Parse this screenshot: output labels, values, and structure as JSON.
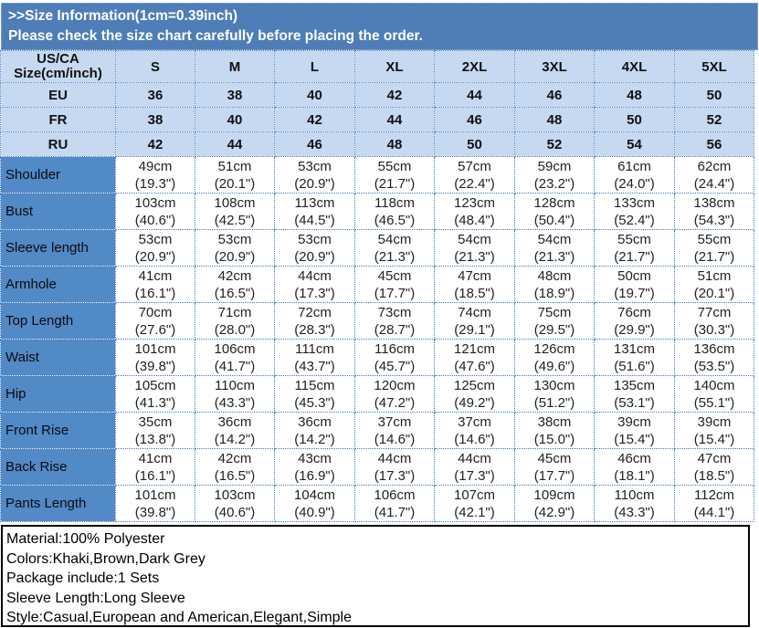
{
  "banner": {
    "title": ">>Size Information(1cm=0.39inch)",
    "subtitle": "Please check the size chart carefully before placing the order."
  },
  "colors": {
    "banner_bg": "#4e7db8",
    "header_bg": "#c6d9f1",
    "label_bg": "#5289c7",
    "dotted_border": "#3f78c0",
    "notes_border": "#000000"
  },
  "table": {
    "corner_header_line1": "US/CA",
    "corner_header_line2": "Size(cm/inch)",
    "size_headers": [
      "S",
      "M",
      "L",
      "XL",
      "2XL",
      "3XL",
      "4XL",
      "5XL"
    ],
    "region_rows": [
      {
        "label": "EU",
        "values": [
          "36",
          "38",
          "40",
          "42",
          "44",
          "46",
          "48",
          "50"
        ]
      },
      {
        "label": "FR",
        "values": [
          "38",
          "40",
          "42",
          "44",
          "46",
          "48",
          "50",
          "52"
        ]
      },
      {
        "label": "RU",
        "values": [
          "42",
          "44",
          "46",
          "48",
          "50",
          "52",
          "54",
          "56"
        ]
      }
    ],
    "measurement_rows": [
      {
        "label": "Shoulder",
        "cells": [
          {
            "cm": "49cm",
            "in": "(19.3\")"
          },
          {
            "cm": "51cm",
            "in": "(20.1\")"
          },
          {
            "cm": "53cm",
            "in": "(20.9\")"
          },
          {
            "cm": "55cm",
            "in": "(21.7\")"
          },
          {
            "cm": "57cm",
            "in": "(22.4\")"
          },
          {
            "cm": "59cm",
            "in": "(23.2\")"
          },
          {
            "cm": "61cm",
            "in": "(24.0\")"
          },
          {
            "cm": "62cm",
            "in": "(24.4\")"
          }
        ]
      },
      {
        "label": "Bust",
        "cells": [
          {
            "cm": "103cm",
            "in": "(40.6\")"
          },
          {
            "cm": "108cm",
            "in": "(42.5\")"
          },
          {
            "cm": "113cm",
            "in": "(44.5\")"
          },
          {
            "cm": "118cm",
            "in": "(46.5\")"
          },
          {
            "cm": "123cm",
            "in": "(48.4\")"
          },
          {
            "cm": "128cm",
            "in": "(50.4\")"
          },
          {
            "cm": "133cm",
            "in": "(52.4\")"
          },
          {
            "cm": "138cm",
            "in": "(54.3\")"
          }
        ]
      },
      {
        "label": "Sleeve length",
        "cells": [
          {
            "cm": "53cm",
            "in": "(20.9\")"
          },
          {
            "cm": "53cm",
            "in": "(20.9\")"
          },
          {
            "cm": "53cm",
            "in": "(20.9\")"
          },
          {
            "cm": "54cm",
            "in": "(21.3\")"
          },
          {
            "cm": "54cm",
            "in": "(21.3\")"
          },
          {
            "cm": "54cm",
            "in": "(21.3\")"
          },
          {
            "cm": "55cm",
            "in": "(21.7\")"
          },
          {
            "cm": "55cm",
            "in": "(21.7\")"
          }
        ]
      },
      {
        "label": "Armhole",
        "cells": [
          {
            "cm": "41cm",
            "in": "(16.1\")"
          },
          {
            "cm": "42cm",
            "in": "(16.5\")"
          },
          {
            "cm": "44cm",
            "in": "(17.3\")"
          },
          {
            "cm": "45cm",
            "in": "(17.7\")"
          },
          {
            "cm": "47cm",
            "in": "(18.5\")"
          },
          {
            "cm": "48cm",
            "in": "(18.9\")"
          },
          {
            "cm": "50cm",
            "in": "(19.7\")"
          },
          {
            "cm": "51cm",
            "in": "(20.1\")"
          }
        ]
      },
      {
        "label": "Top Length",
        "cells": [
          {
            "cm": "70cm",
            "in": "(27.6\")"
          },
          {
            "cm": "71cm",
            "in": "(28.0\")"
          },
          {
            "cm": "72cm",
            "in": "(28.3\")"
          },
          {
            "cm": "73cm",
            "in": "(28.7\")"
          },
          {
            "cm": "74cm",
            "in": "(29.1\")"
          },
          {
            "cm": "75cm",
            "in": "(29.5\")"
          },
          {
            "cm": "76cm",
            "in": "(29.9\")"
          },
          {
            "cm": "77cm",
            "in": "(30.3\")"
          }
        ]
      },
      {
        "label": "Waist",
        "cells": [
          {
            "cm": "101cm",
            "in": "(39.8\")"
          },
          {
            "cm": "106cm",
            "in": "(41.7\")"
          },
          {
            "cm": "111cm",
            "in": "(43.7\")"
          },
          {
            "cm": "116cm",
            "in": "(45.7\")"
          },
          {
            "cm": "121cm",
            "in": "(47.6\")"
          },
          {
            "cm": "126cm",
            "in": "(49.6\")"
          },
          {
            "cm": "131cm",
            "in": "(51.6\")"
          },
          {
            "cm": "136cm",
            "in": "(53.5\")"
          }
        ]
      },
      {
        "label": "Hip",
        "cells": [
          {
            "cm": "105cm",
            "in": "(41.3\")"
          },
          {
            "cm": "110cm",
            "in": "(43.3\")"
          },
          {
            "cm": "115cm",
            "in": "(45.3\")"
          },
          {
            "cm": "120cm",
            "in": "(47.2\")"
          },
          {
            "cm": "125cm",
            "in": "(49.2\")"
          },
          {
            "cm": "130cm",
            "in": "(51.2\")"
          },
          {
            "cm": "135cm",
            "in": "(53.1\")"
          },
          {
            "cm": "140cm",
            "in": "(55.1\")"
          }
        ]
      },
      {
        "label": "Front Rise",
        "cells": [
          {
            "cm": "35cm",
            "in": "(13.8\")"
          },
          {
            "cm": "36cm",
            "in": "(14.2\")"
          },
          {
            "cm": "36cm",
            "in": "(14.2\")"
          },
          {
            "cm": "37cm",
            "in": "(14.6\")"
          },
          {
            "cm": "37cm",
            "in": "(14.6\")"
          },
          {
            "cm": "38cm",
            "in": "(15.0\")"
          },
          {
            "cm": "39cm",
            "in": "(15.4\")"
          },
          {
            "cm": "39cm",
            "in": "(15.4\")"
          }
        ]
      },
      {
        "label": "Back Rise",
        "cells": [
          {
            "cm": "41cm",
            "in": "(16.1\")"
          },
          {
            "cm": "42cm",
            "in": "(16.5\")"
          },
          {
            "cm": "43cm",
            "in": "(16.9\")"
          },
          {
            "cm": "44cm",
            "in": "(17.3\")"
          },
          {
            "cm": "44cm",
            "in": "(17.3\")"
          },
          {
            "cm": "45cm",
            "in": "(17.7\")"
          },
          {
            "cm": "46cm",
            "in": "(18.1\")"
          },
          {
            "cm": "47cm",
            "in": "(18.5\")"
          }
        ]
      },
      {
        "label": "Pants Length",
        "cells": [
          {
            "cm": "101cm",
            "in": "(39.8\")"
          },
          {
            "cm": "103cm",
            "in": "(40.6\")"
          },
          {
            "cm": "104cm",
            "in": "(40.9\")"
          },
          {
            "cm": "106cm",
            "in": "(41.7\")"
          },
          {
            "cm": "107cm",
            "in": "(42.1\")"
          },
          {
            "cm": "109cm",
            "in": "(42.9\")"
          },
          {
            "cm": "110cm",
            "in": "(43.3\")"
          },
          {
            "cm": "112cm",
            "in": "(44.1\")"
          }
        ]
      }
    ]
  },
  "footer": {
    "lines": [
      "Material:100% Polyester",
      "Colors:Khaki,Brown,Dark Grey",
      "Package include:1 Sets",
      "Sleeve Length:Long Sleeve",
      "Style:Casual,European and American,Elegant,Simple"
    ]
  }
}
